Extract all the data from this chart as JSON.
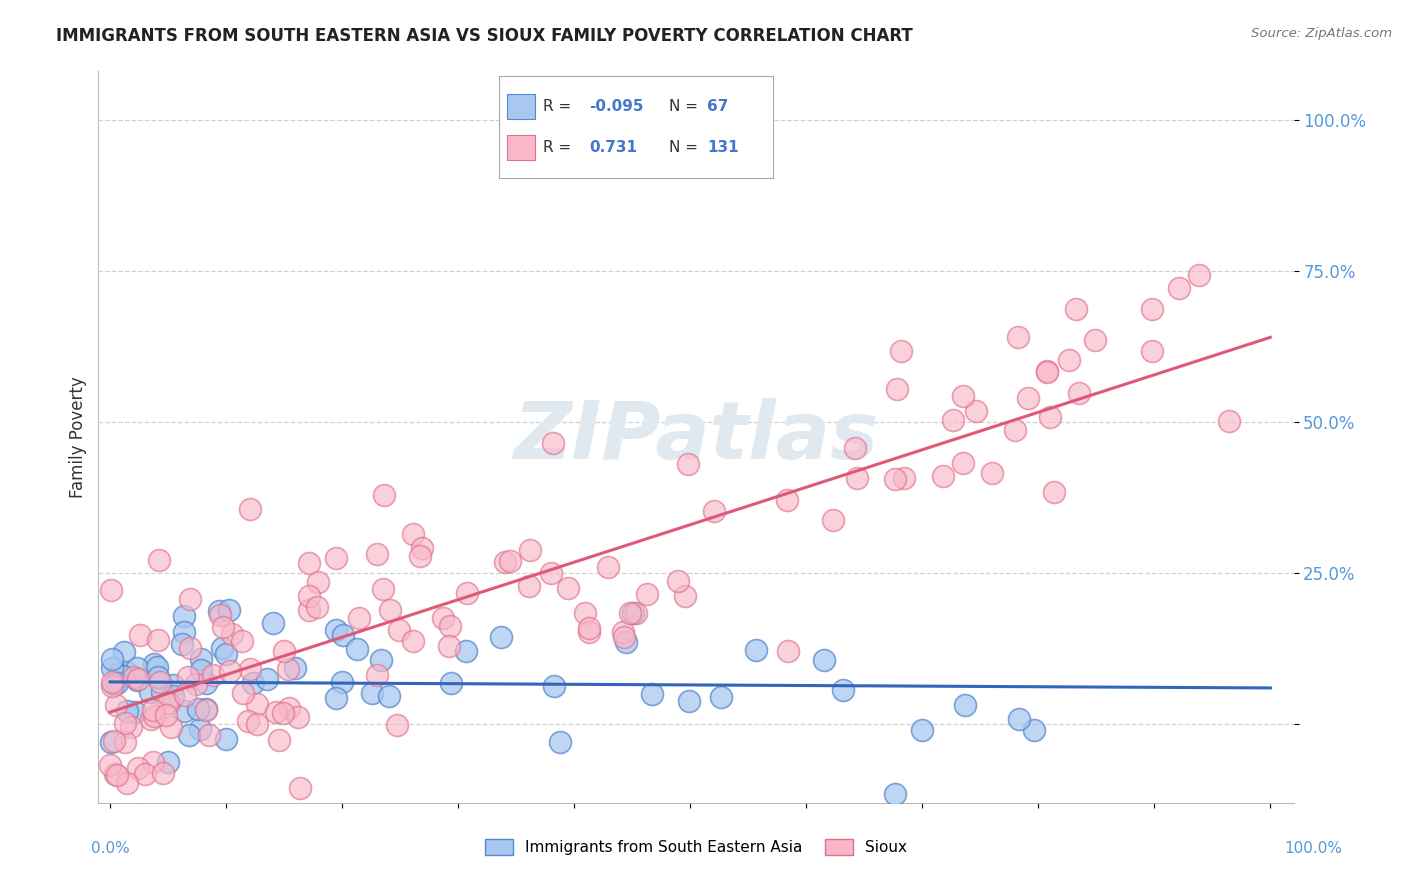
{
  "title": "IMMIGRANTS FROM SOUTH EASTERN ASIA VS SIOUX FAMILY POVERTY CORRELATION CHART",
  "source": "Source: ZipAtlas.com",
  "ylabel": "Family Poverty",
  "color_blue": "#A8C8F0",
  "color_blue_edge": "#5588CC",
  "color_blue_line": "#3366BB",
  "color_pink": "#F8B8C8",
  "color_pink_edge": "#E07090",
  "color_pink_line": "#E05878",
  "background_color": "#FFFFFF",
  "grid_color": "#CCCCCC",
  "watermark_color": "#E0E8F0",
  "tick_label_color": "#5599DD",
  "title_color": "#222222",
  "source_color": "#777777",
  "ylabel_color": "#333333"
}
